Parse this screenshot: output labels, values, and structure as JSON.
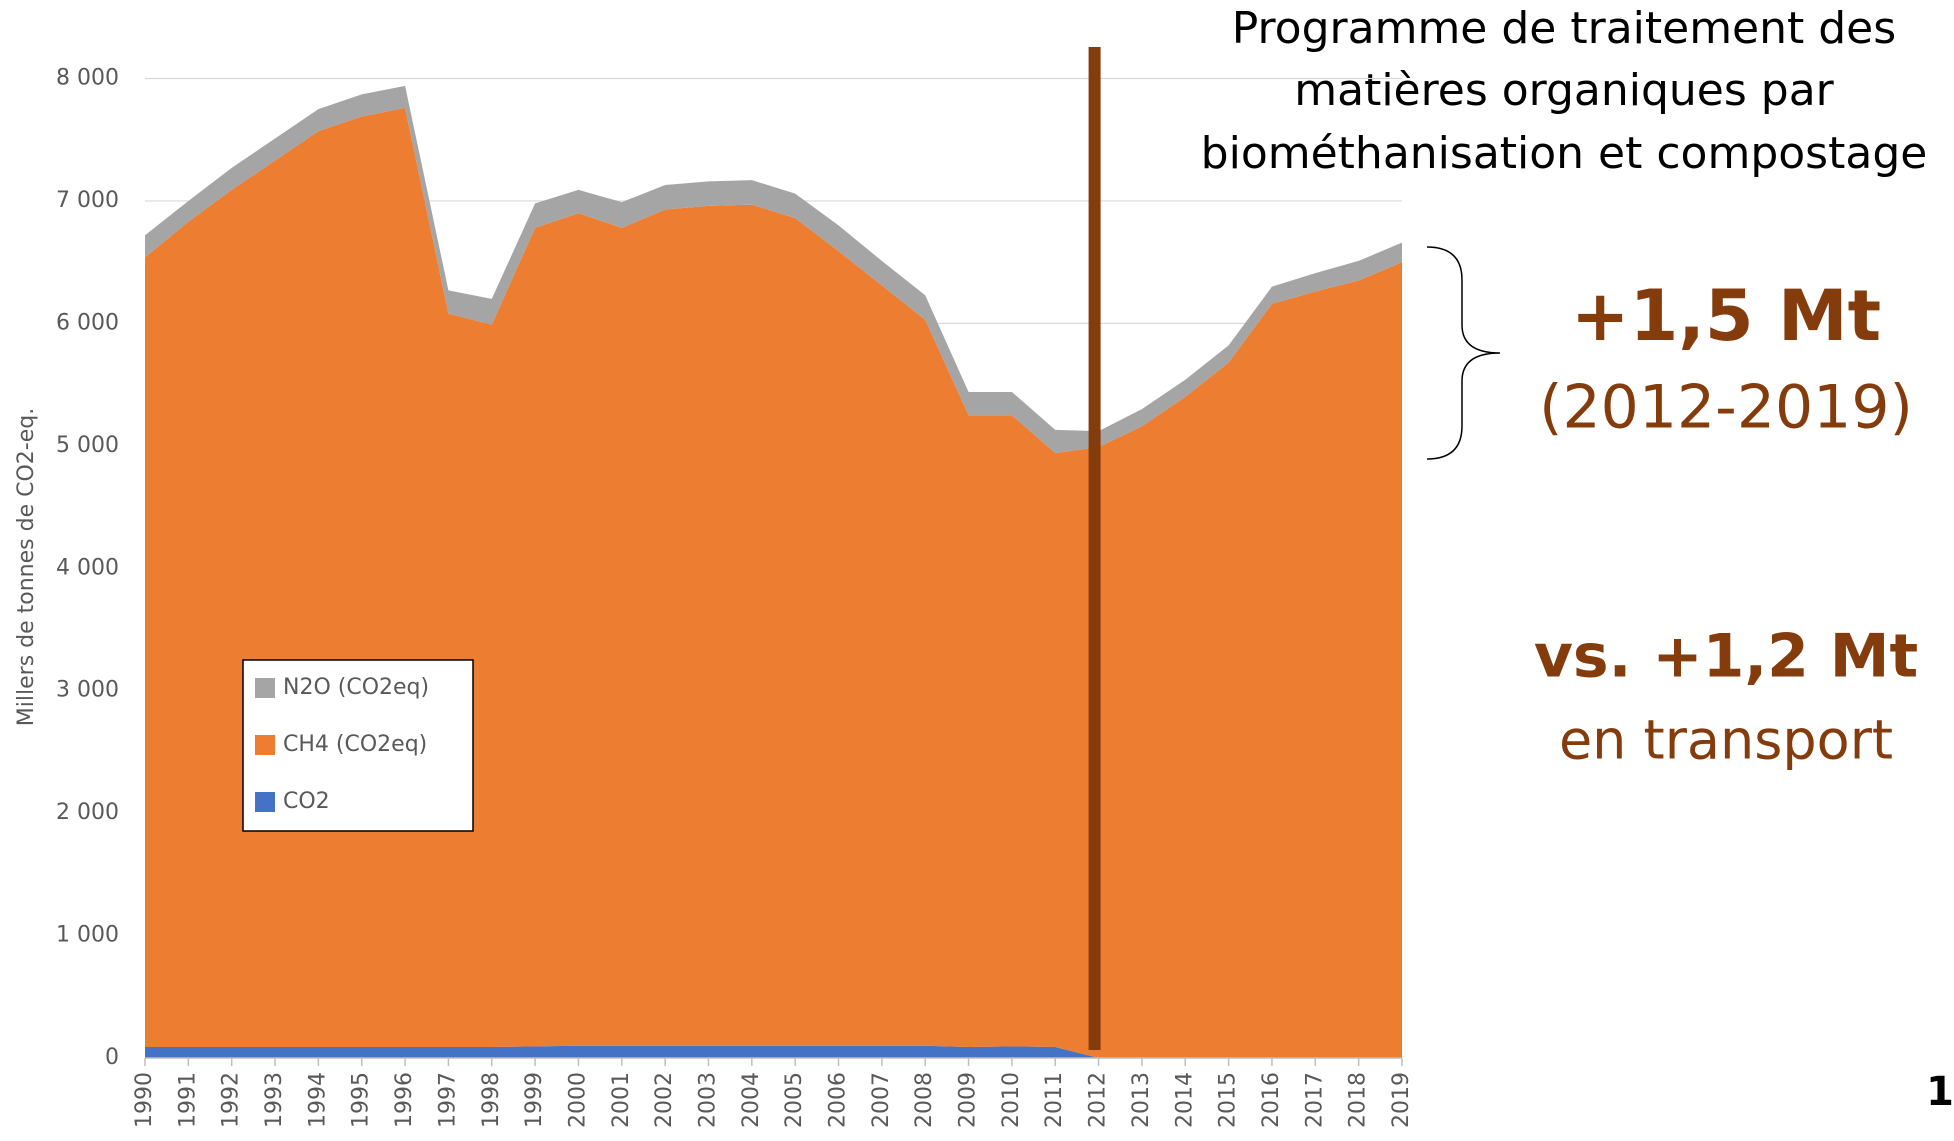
{
  "chart_data": {
    "type": "stacked_area",
    "title_lines": [
      "Programme de traitement des",
      "matières organiques par",
      "biométhanisation et compostage"
    ],
    "y_label": "Millers de tonnes de CO2-eq.",
    "annotations": [
      "+1,5 Mt",
      "(2012-2019)",
      "vs. +1,2 Mt",
      "en transport"
    ],
    "page_number": "1",
    "vline_category": "2012",
    "categories": [
      "1990",
      "1991",
      "1992",
      "1993",
      "1994",
      "1995",
      "1996",
      "1997",
      "1998",
      "1999",
      "2000",
      "2001",
      "2002",
      "2003",
      "2004",
      "2005",
      "2006",
      "2007",
      "2008",
      "2009",
      "2010",
      "2011",
      "2012",
      "2013",
      "2014",
      "2015",
      "2016",
      "2017",
      "2018",
      "2019"
    ],
    "series": [
      {
        "name": "CO2",
        "color": "#4472c4",
        "values": [
          90,
          90,
          90,
          90,
          90,
          90,
          90,
          90,
          90,
          95,
          100,
          100,
          100,
          100,
          100,
          100,
          100,
          100,
          100,
          90,
          95,
          90,
          0,
          0,
          0,
          0,
          0,
          0,
          0,
          0
        ]
      },
      {
        "name": "CH4 (CO2eq)",
        "color": "#ed7d31",
        "values": [
          6450,
          6740,
          7000,
          7240,
          7480,
          7600,
          7670,
          5990,
          5900,
          6685,
          6800,
          6680,
          6830,
          6860,
          6870,
          6760,
          6490,
          6210,
          5930,
          5160,
          5155,
          4850,
          4990,
          5160,
          5400,
          5680,
          6160,
          6260,
          6350,
          6500
        ]
      },
      {
        "name": "N2O (CO2eq)",
        "color": "#a5a5a5",
        "values": [
          180,
          170,
          180,
          180,
          180,
          180,
          180,
          190,
          210,
          200,
          190,
          210,
          200,
          200,
          200,
          200,
          210,
          200,
          200,
          190,
          190,
          190,
          130,
          140,
          140,
          140,
          140,
          150,
          160,
          160
        ]
      }
    ],
    "ylim": [
      0,
      8000
    ],
    "yticks": [
      0,
      {
        "value": 1000,
        "label": "1 000"
      },
      {
        "value": 2000,
        "label": "2 000"
      },
      {
        "value": 3000,
        "label": "3 000"
      },
      {
        "value": 4000,
        "label": "4 000"
      },
      {
        "value": 5000,
        "label": "5 000"
      },
      {
        "value": 6000,
        "label": "6 000"
      },
      {
        "value": 7000,
        "label": "7 000"
      },
      {
        "value": 8000,
        "label": "8 000"
      }
    ],
    "grid": true
  }
}
